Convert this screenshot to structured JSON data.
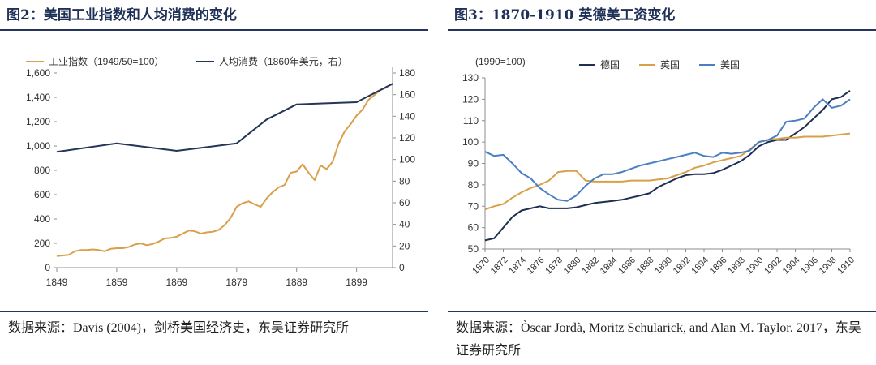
{
  "chart_data": [
    {
      "type": "line",
      "title": "图2：美国工业指数和人均消费的变化",
      "source": "数据来源：Davis (2004)，剑桥美国经济史，东吴证券研究所",
      "x_ticks": [
        "1849",
        "1859",
        "1869",
        "1879",
        "1889",
        "1899"
      ],
      "xlim": [
        1849,
        1905
      ],
      "y_left": {
        "ylim": [
          0,
          1600
        ],
        "ticks": [
          "0",
          "200",
          "400",
          "600",
          "800",
          "1,000",
          "1,200",
          "1,400",
          "1,600"
        ]
      },
      "y_right": {
        "ylim": [
          0,
          180
        ],
        "ticks": [
          "0",
          "20",
          "40",
          "60",
          "80",
          "100",
          "120",
          "140",
          "160",
          "180"
        ]
      },
      "legend_position": "top",
      "colors": {
        "industry": "#d9a04a",
        "consumption": "#243557"
      },
      "series": [
        {
          "name": "工业指数（1949/50=100）",
          "axis": "left",
          "color": "#d9a04a",
          "x": [
            1849,
            1850,
            1851,
            1852,
            1853,
            1854,
            1855,
            1856,
            1857,
            1858,
            1859,
            1860,
            1861,
            1862,
            1863,
            1864,
            1865,
            1866,
            1867,
            1868,
            1869,
            1870,
            1871,
            1872,
            1873,
            1874,
            1875,
            1876,
            1877,
            1878,
            1879,
            1880,
            1881,
            1882,
            1883,
            1884,
            1885,
            1886,
            1887,
            1888,
            1889,
            1890,
            1891,
            1892,
            1893,
            1894,
            1895,
            1896,
            1897,
            1898,
            1899,
            1900,
            1901,
            1902,
            1903,
            1904
          ],
          "y": [
            95,
            100,
            105,
            135,
            145,
            145,
            150,
            145,
            135,
            155,
            160,
            160,
            170,
            190,
            200,
            185,
            195,
            215,
            240,
            245,
            255,
            280,
            305,
            300,
            280,
            290,
            295,
            310,
            350,
            410,
            500,
            530,
            545,
            520,
            500,
            570,
            620,
            660,
            680,
            780,
            790,
            850,
            780,
            720,
            840,
            810,
            870,
            1020,
            1120,
            1180,
            1250,
            1300,
            1380,
            1420,
            1460,
            1480
          ]
        },
        {
          "name": "人均消费（1860年美元，右）",
          "axis": "right",
          "color": "#243557",
          "x": [
            1849,
            1859,
            1869,
            1879,
            1884,
            1889,
            1899,
            1905
          ],
          "y": [
            107,
            115,
            108,
            115,
            137,
            151,
            153,
            170
          ]
        }
      ]
    },
    {
      "type": "line",
      "title": "图3：1870-1910 英德美工资变化",
      "source": "数据来源：Òscar Jordà, Moritz Schularick, and Alan M. Taylor. 2017，东吴证券研究所",
      "unit_label": "(1990=100)",
      "ylim": [
        50,
        130
      ],
      "y_ticks": [
        "50",
        "60",
        "70",
        "80",
        "90",
        "100",
        "110",
        "120",
        "130"
      ],
      "x_ticks": [
        "1870",
        "1872",
        "1874",
        "1876",
        "1878",
        "1880",
        "1882",
        "1884",
        "1886",
        "1888",
        "1890",
        "1892",
        "1894",
        "1896",
        "1898",
        "1900",
        "1902",
        "1904",
        "1906",
        "1908",
        "1910"
      ],
      "legend_position": "top",
      "x": [
        1870,
        1871,
        1872,
        1873,
        1874,
        1875,
        1876,
        1877,
        1878,
        1879,
        1880,
        1881,
        1882,
        1883,
        1884,
        1885,
        1886,
        1887,
        1888,
        1889,
        1890,
        1891,
        1892,
        1893,
        1894,
        1895,
        1896,
        1897,
        1898,
        1899,
        1900,
        1901,
        1902,
        1903,
        1904,
        1905,
        1906,
        1907,
        1908,
        1909,
        1910
      ],
      "series": [
        {
          "name": "德国",
          "color": "#1f2f52",
          "values": [
            54,
            55,
            60,
            65,
            68,
            69,
            70,
            69,
            69,
            69,
            69.5,
            70.5,
            71.5,
            72,
            72.5,
            73,
            74,
            75,
            76,
            79,
            81,
            83,
            84.5,
            85,
            85,
            85.5,
            87,
            89,
            91,
            94,
            98,
            100,
            101,
            101,
            104,
            107,
            111,
            115,
            120,
            121,
            124
          ]
        },
        {
          "name": "英国",
          "color": "#d9a04a",
          "values": [
            68.5,
            70,
            71,
            74,
            76.5,
            78.5,
            80,
            82,
            86,
            86.5,
            86.5,
            82,
            81.5,
            81.5,
            81.5,
            81.5,
            82,
            82,
            82,
            82.5,
            83,
            84.5,
            86,
            88,
            89,
            90.5,
            91.5,
            92.5,
            93.5,
            96.5,
            100,
            101,
            101.5,
            102,
            102,
            102.5,
            102.5,
            102.5,
            103,
            103.5,
            104
          ]
        },
        {
          "name": "美国",
          "color": "#4a7fc1",
          "values": [
            95.5,
            93.5,
            94,
            90,
            85.5,
            83,
            78.5,
            75.5,
            73,
            72.5,
            75,
            79.5,
            83,
            85,
            85,
            86,
            87.5,
            89,
            90,
            91,
            92,
            93,
            94,
            95,
            93.5,
            93,
            95,
            94.5,
            95,
            96,
            100,
            101,
            103,
            109.5,
            110,
            111,
            116,
            120,
            116,
            117,
            120
          ]
        }
      ]
    }
  ]
}
